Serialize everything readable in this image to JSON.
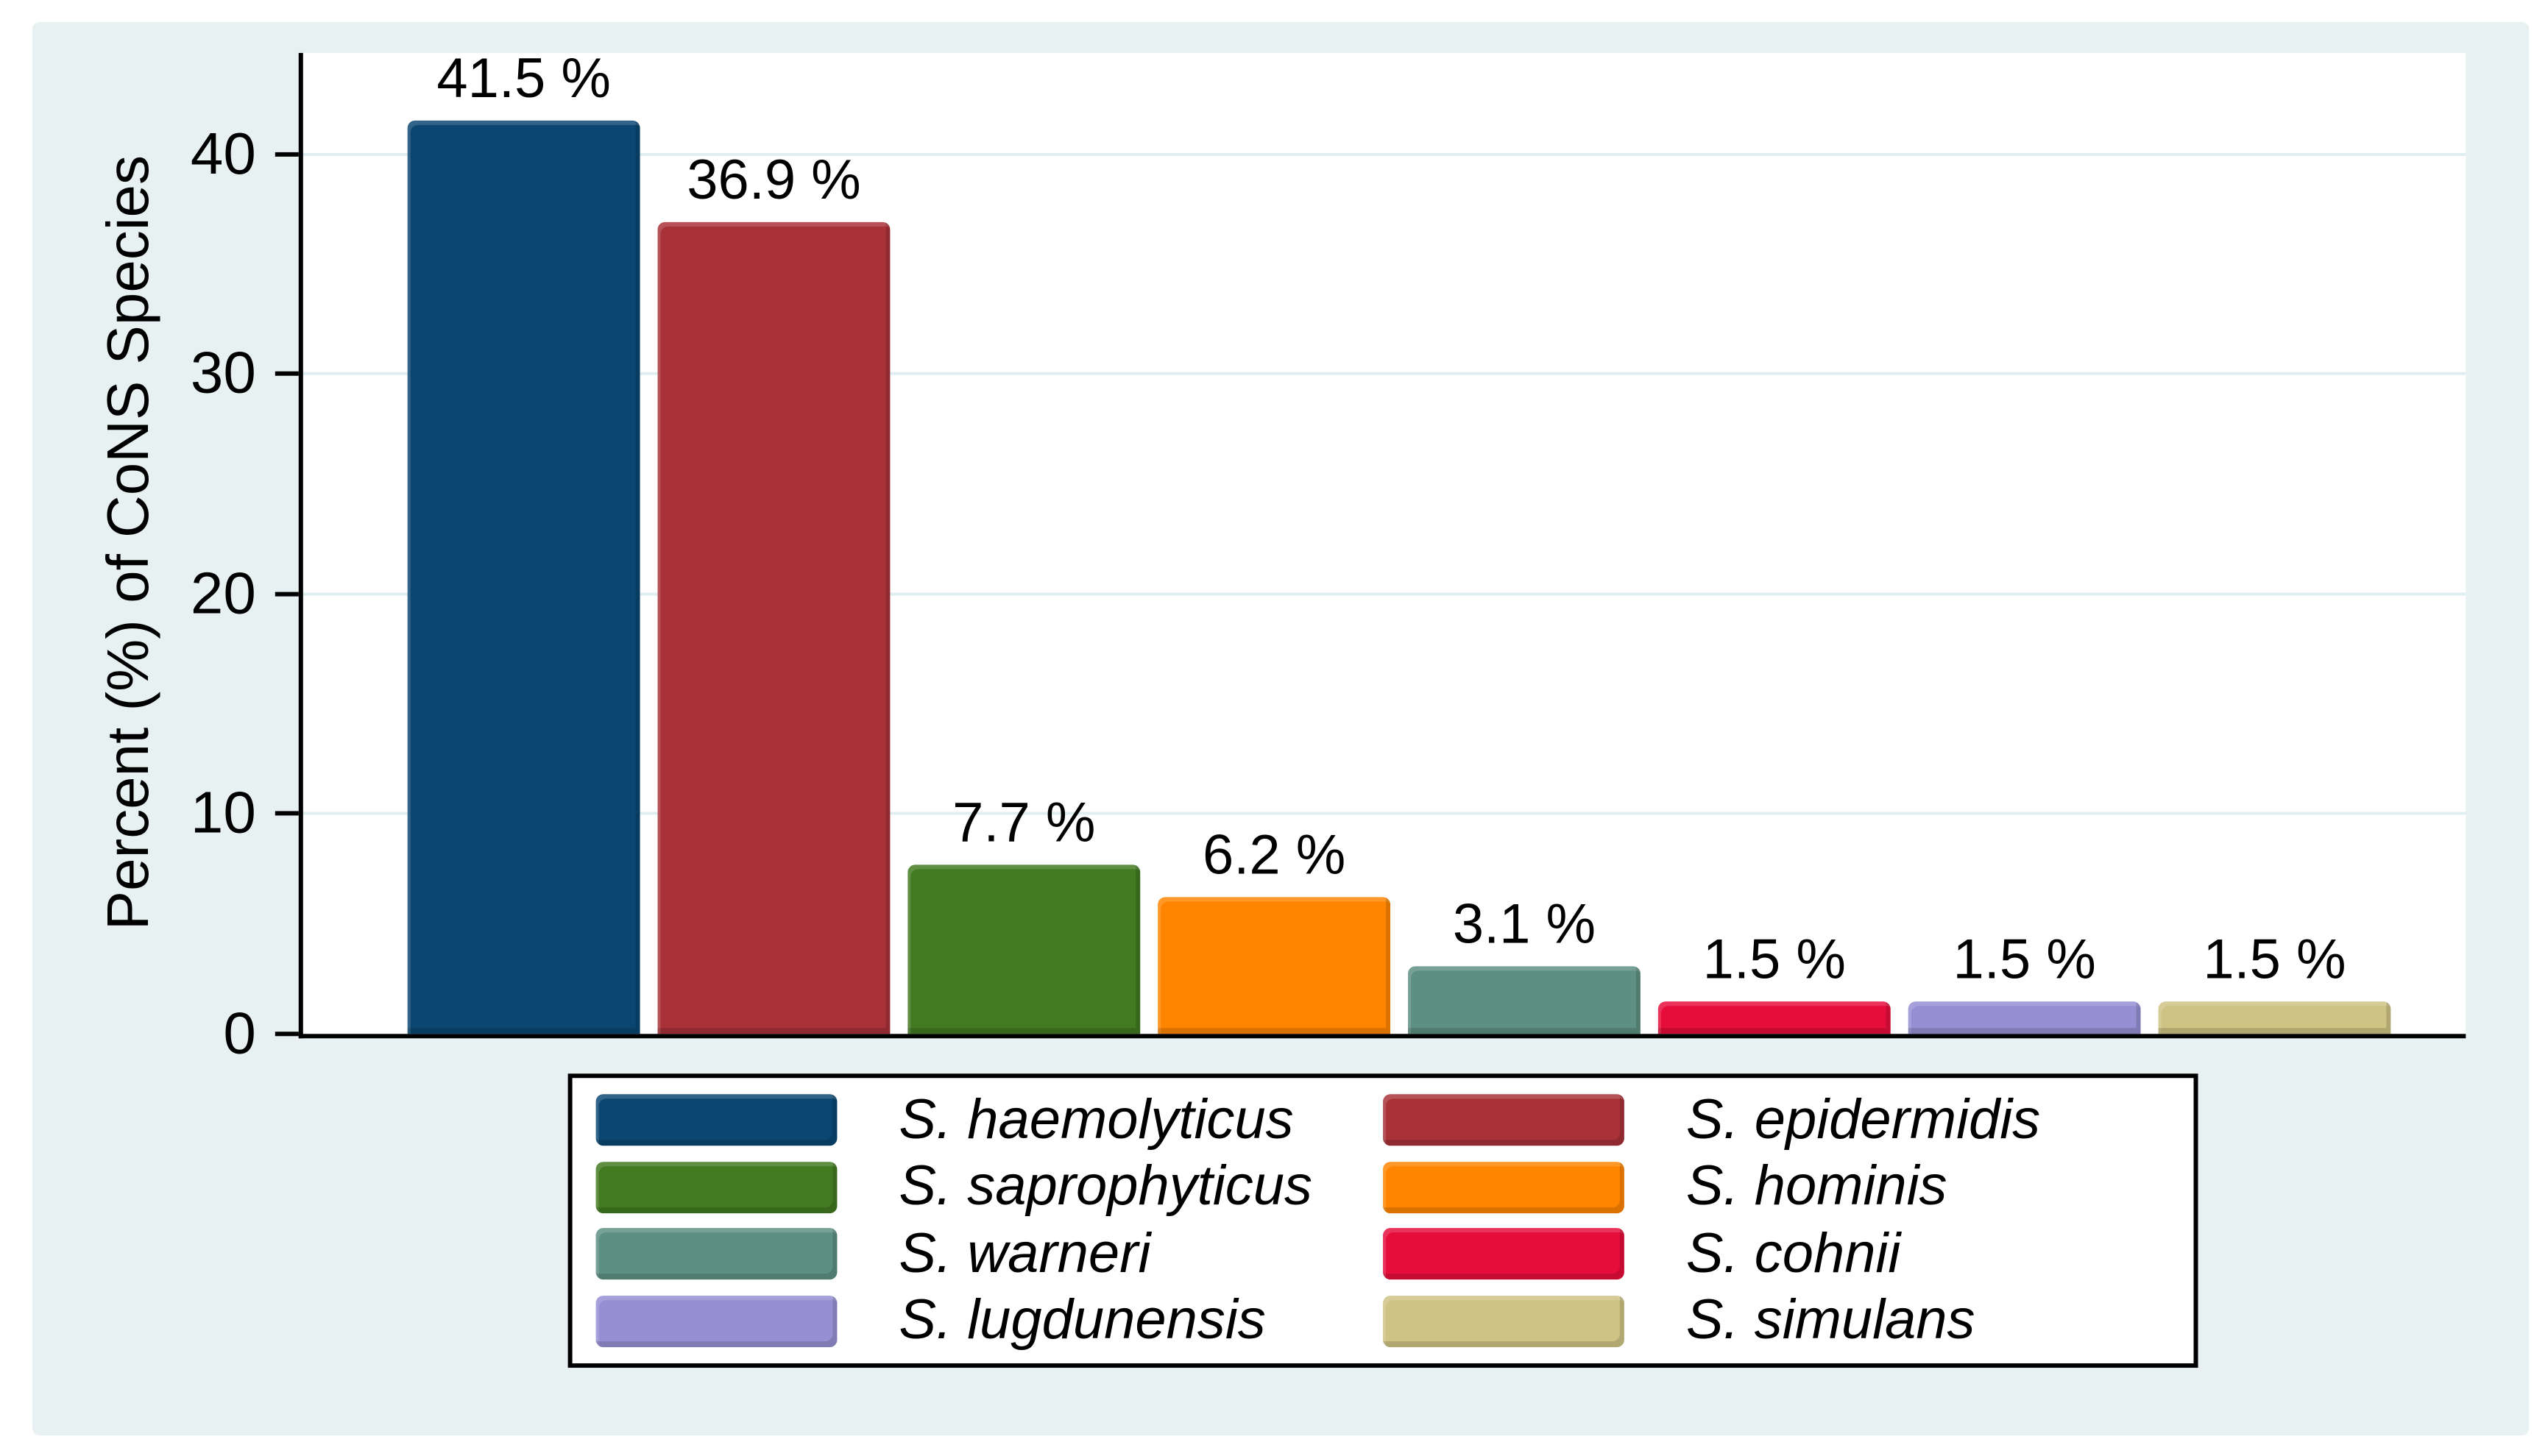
{
  "figure": {
    "background": "#ffffff",
    "panel_background": "#e8f1f2",
    "gridline_color": "#dfeef0",
    "axis_color": "#000000"
  },
  "chart_data": {
    "type": "bar",
    "title": "",
    "xlabel": "",
    "ylabel": "Percent (%) of CoNS Species",
    "ylim": [
      0,
      44.6
    ],
    "yticks": [
      0,
      10,
      20,
      30,
      40
    ],
    "grid": "horizontal-light",
    "legend_position": "bottom",
    "categories": [
      "S. haemolyticus",
      "S. epidermidis",
      "S. saprophyticus",
      "S. hominis",
      "S. warneri",
      "S. cohnii",
      "S. lugdunensis",
      "S. simulans"
    ],
    "values": [
      41.5,
      36.9,
      7.7,
      6.2,
      3.1,
      1.5,
      1.5,
      1.5
    ],
    "bars": [
      {
        "species": "S. haemolyticus",
        "value": 41.5,
        "label": "41.5 %",
        "color": "#0b4672"
      },
      {
        "species": "S. epidermidis",
        "value": 36.9,
        "label": "36.9 %",
        "color": "#a93239"
      },
      {
        "species": "S. saprophyticus",
        "value": 7.7,
        "label": "7.7 %",
        "color": "#427a21"
      },
      {
        "species": "S. hominis",
        "value": 6.2,
        "label": "6.2 %",
        "color": "#ff8500"
      },
      {
        "species": "S. warneri",
        "value": 3.1,
        "label": "3.1 %",
        "color": "#5e9082"
      },
      {
        "species": "S. cohnii",
        "value": 1.5,
        "label": "1.5 %",
        "color": "#e60d3b"
      },
      {
        "species": "S. lugdunensis",
        "value": 1.5,
        "label": "1.5 %",
        "color": "#968fd3"
      },
      {
        "species": "S. simulans",
        "value": 1.5,
        "label": "1.5 %",
        "color": "#cfc383"
      }
    ],
    "legend": {
      "columns": 2,
      "items": [
        {
          "label": "S. haemolyticus",
          "color": "#0b4672"
        },
        {
          "label": "S. epidermidis",
          "color": "#a93239"
        },
        {
          "label": "S. saprophyticus",
          "color": "#427a21"
        },
        {
          "label": "S. hominis",
          "color": "#ff8500"
        },
        {
          "label": "S. warneri",
          "color": "#5e9082"
        },
        {
          "label": "S. cohnii",
          "color": "#e60d3b"
        },
        {
          "label": "S. lugdunensis",
          "color": "#968fd3"
        },
        {
          "label": "S. simulans",
          "color": "#cfc383"
        }
      ]
    }
  }
}
